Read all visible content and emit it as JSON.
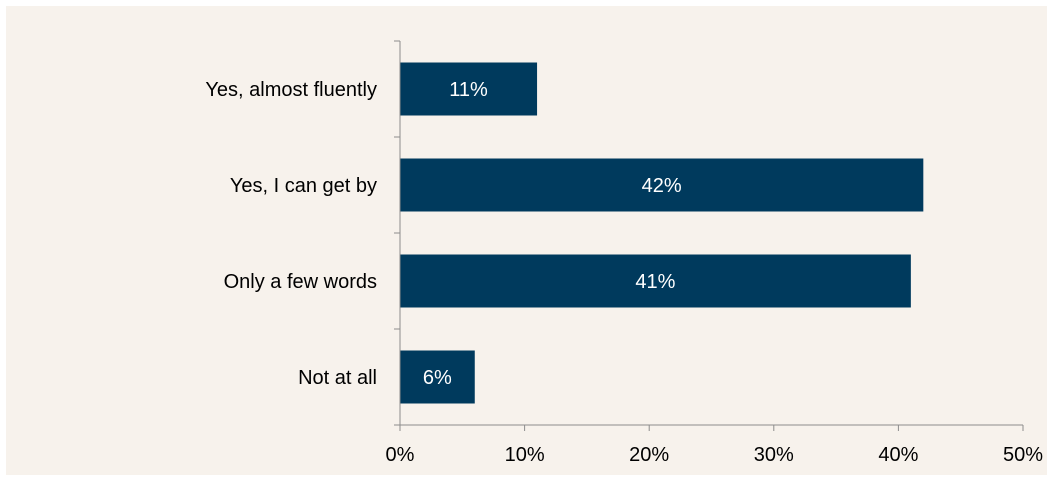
{
  "chart_data": {
    "type": "bar",
    "orientation": "horizontal",
    "title": "",
    "xlabel": "",
    "ylabel": "",
    "categories": [
      "Yes, almost fluently",
      "Yes, I can get by",
      "Only a few words",
      "Not at all"
    ],
    "values": [
      11,
      42,
      41,
      6
    ],
    "data_labels": [
      "11%",
      "42%",
      "41%",
      "6%"
    ],
    "xlim": [
      0,
      50
    ],
    "xticks": [
      0,
      10,
      20,
      30,
      40,
      50
    ],
    "xtick_labels": [
      "0%",
      "10%",
      "20%",
      "30%",
      "40%",
      "50%"
    ],
    "grid": false,
    "legend": "none",
    "colors": {
      "background": "#f7f2ec",
      "bar": "#003a5d",
      "axis": "#8c8c8c",
      "text": "#000000",
      "label_text": "#ffffff"
    }
  }
}
